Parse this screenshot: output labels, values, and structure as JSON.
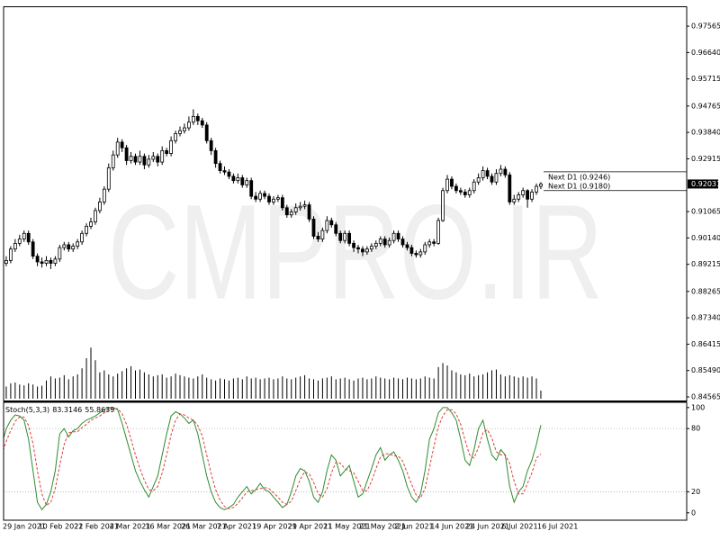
{
  "chart_data": {
    "type": "candlestick",
    "watermark": "CMPRO.IR",
    "up_color": "#ffffff",
    "down_color": "#000000",
    "categories": [
      "29 Jan 2021",
      null,
      null,
      null,
      null,
      null,
      null,
      null,
      "10 Feb 2021",
      null,
      null,
      null,
      null,
      null,
      null,
      null,
      "22 Feb 2021",
      null,
      null,
      null,
      null,
      null,
      null,
      null,
      "4 Mar 2021",
      null,
      null,
      null,
      null,
      null,
      null,
      null,
      "16 Mar 2021",
      null,
      null,
      null,
      null,
      null,
      null,
      null,
      "26 Mar 2021",
      null,
      null,
      null,
      null,
      null,
      null,
      null,
      "7 Apr 2021",
      null,
      null,
      null,
      null,
      null,
      null,
      null,
      "19 Apr 2021",
      null,
      null,
      null,
      null,
      null,
      null,
      null,
      "29 Apr 2021",
      null,
      null,
      null,
      null,
      null,
      null,
      null,
      "11 May 2021",
      null,
      null,
      null,
      null,
      null,
      null,
      null,
      "21 May 2021",
      null,
      null,
      null,
      null,
      null,
      null,
      null,
      "2 Jun 2021",
      null,
      null,
      null,
      null,
      null,
      null,
      null,
      "14 Jun 2021",
      null,
      null,
      null,
      null,
      null,
      null,
      null,
      "24 Jun 2021",
      null,
      null,
      null,
      null,
      null,
      null,
      null,
      "6 Jul 2021",
      null,
      null,
      null,
      null,
      null,
      null,
      null,
      "16 Jul 2021",
      null
    ],
    "open": [
      0.8915,
      0.8925,
      0.8935,
      0.8975,
      0.8995,
      0.901,
      0.903,
      0.9,
      0.895,
      0.893,
      0.8925,
      0.8935,
      0.8925,
      0.894,
      0.898,
      0.899,
      0.8975,
      0.8985,
      0.9,
      0.903,
      0.9055,
      0.907,
      0.911,
      0.914,
      0.9185,
      0.926,
      0.9305,
      0.935,
      0.933,
      0.9285,
      0.93,
      0.928,
      0.93,
      0.927,
      0.929,
      0.93,
      0.928,
      0.932,
      0.931,
      0.9355,
      0.938,
      0.939,
      0.94,
      0.942,
      0.944,
      0.9425,
      0.941,
      0.9355,
      0.932,
      0.9275,
      0.925,
      0.9245,
      0.923,
      0.9215,
      0.9225,
      0.92,
      0.9215,
      0.916,
      0.915,
      0.917,
      0.916,
      0.914,
      0.915,
      0.9155,
      0.912,
      0.9095,
      0.9105,
      0.912,
      0.9125,
      0.913,
      0.908,
      0.902,
      0.901,
      0.904,
      0.9075,
      0.906,
      0.903,
      0.9005,
      0.903,
      0.8995,
      0.898,
      0.8975,
      0.8965,
      0.8975,
      0.8985,
      0.8995,
      0.901,
      0.899,
      0.9005,
      0.903,
      0.901,
      0.899,
      0.898,
      0.896,
      0.8955,
      0.8965,
      0.899,
      0.9,
      0.8995,
      0.9075,
      0.918,
      0.922,
      0.9195,
      0.918,
      0.9175,
      0.9165,
      0.918,
      0.921,
      0.9225,
      0.925,
      0.923,
      0.921,
      0.924,
      0.9255,
      0.9235,
      0.914,
      0.915,
      0.9165,
      0.918,
      0.915,
      0.9175,
      0.9195
    ],
    "high": [
      0.8935,
      0.895,
      0.8985,
      0.901,
      0.9025,
      0.904,
      0.904,
      0.901,
      0.896,
      0.8945,
      0.895,
      0.8945,
      0.895,
      0.899,
      0.9,
      0.9,
      0.8995,
      0.901,
      0.904,
      0.9065,
      0.9085,
      0.912,
      0.9155,
      0.9195,
      0.9275,
      0.932,
      0.9365,
      0.936,
      0.934,
      0.9315,
      0.931,
      0.932,
      0.931,
      0.9305,
      0.9315,
      0.931,
      0.9335,
      0.933,
      0.937,
      0.939,
      0.9405,
      0.9415,
      0.944,
      0.9465,
      0.945,
      0.9435,
      0.942,
      0.9365,
      0.933,
      0.9285,
      0.9265,
      0.9255,
      0.924,
      0.924,
      0.9235,
      0.9225,
      0.9225,
      0.9175,
      0.918,
      0.918,
      0.917,
      0.916,
      0.9165,
      0.9165,
      0.913,
      0.9115,
      0.9135,
      0.914,
      0.9145,
      0.914,
      0.909,
      0.9035,
      0.905,
      0.909,
      0.9085,
      0.907,
      0.904,
      0.904,
      0.904,
      0.9005,
      0.899,
      0.8985,
      0.8985,
      0.8995,
      0.9005,
      0.902,
      0.902,
      0.9015,
      0.904,
      0.904,
      0.902,
      0.9,
      0.899,
      0.897,
      0.8975,
      0.9,
      0.901,
      0.901,
      0.9085,
      0.919,
      0.9235,
      0.923,
      0.9205,
      0.919,
      0.9185,
      0.919,
      0.922,
      0.924,
      0.9265,
      0.926,
      0.924,
      0.9255,
      0.927,
      0.9265,
      0.9245,
      0.9165,
      0.9175,
      0.919,
      0.9185,
      0.9185,
      0.9205,
      0.921
    ],
    "low": [
      0.8905,
      0.8915,
      0.8925,
      0.8965,
      0.8985,
      0.9,
      0.899,
      0.894,
      0.8915,
      0.891,
      0.8915,
      0.8905,
      0.8915,
      0.893,
      0.897,
      0.8965,
      0.8965,
      0.8975,
      0.899,
      0.902,
      0.9045,
      0.906,
      0.91,
      0.913,
      0.9175,
      0.925,
      0.9295,
      0.9315,
      0.927,
      0.9275,
      0.927,
      0.927,
      0.9255,
      0.926,
      0.928,
      0.9265,
      0.927,
      0.93,
      0.93,
      0.9345,
      0.937,
      0.938,
      0.939,
      0.941,
      0.941,
      0.94,
      0.9345,
      0.9305,
      0.926,
      0.924,
      0.9235,
      0.922,
      0.9205,
      0.9205,
      0.919,
      0.919,
      0.915,
      0.914,
      0.914,
      0.915,
      0.913,
      0.913,
      0.914,
      0.911,
      0.9085,
      0.9085,
      0.9095,
      0.911,
      0.9115,
      0.907,
      0.901,
      0.9,
      0.9,
      0.903,
      0.905,
      0.902,
      0.8995,
      0.8995,
      0.8985,
      0.8965,
      0.896,
      0.895,
      0.8955,
      0.8965,
      0.8975,
      0.8985,
      0.898,
      0.898,
      0.8995,
      0.9,
      0.898,
      0.897,
      0.895,
      0.8945,
      0.8945,
      0.8955,
      0.898,
      0.8985,
      0.899,
      0.907,
      0.917,
      0.9185,
      0.917,
      0.9165,
      0.9155,
      0.9155,
      0.917,
      0.92,
      0.9215,
      0.922,
      0.92,
      0.92,
      0.923,
      0.9225,
      0.913,
      0.913,
      0.914,
      0.9155,
      0.912,
      0.914,
      0.9165,
      0.9185
    ],
    "close": [
      0.8925,
      0.8935,
      0.8975,
      0.8995,
      0.901,
      0.903,
      0.9,
      0.895,
      0.893,
      0.8925,
      0.8935,
      0.8925,
      0.894,
      0.898,
      0.899,
      0.8975,
      0.8985,
      0.9,
      0.903,
      0.9055,
      0.907,
      0.911,
      0.914,
      0.9185,
      0.926,
      0.9305,
      0.935,
      0.933,
      0.9285,
      0.93,
      0.928,
      0.93,
      0.927,
      0.929,
      0.93,
      0.928,
      0.932,
      0.931,
      0.9355,
      0.938,
      0.939,
      0.94,
      0.942,
      0.944,
      0.9425,
      0.941,
      0.9355,
      0.932,
      0.9275,
      0.925,
      0.9245,
      0.923,
      0.9215,
      0.9225,
      0.92,
      0.9215,
      0.916,
      0.915,
      0.917,
      0.916,
      0.914,
      0.915,
      0.9155,
      0.912,
      0.9095,
      0.9105,
      0.912,
      0.9125,
      0.913,
      0.908,
      0.902,
      0.901,
      0.904,
      0.9075,
      0.906,
      0.903,
      0.9005,
      0.903,
      0.8995,
      0.898,
      0.8975,
      0.8965,
      0.8975,
      0.8985,
      0.8995,
      0.901,
      0.899,
      0.9005,
      0.903,
      0.901,
      0.899,
      0.898,
      0.896,
      0.8955,
      0.8965,
      0.899,
      0.9,
      0.8995,
      0.9075,
      0.918,
      0.922,
      0.9195,
      0.918,
      0.9175,
      0.9165,
      0.918,
      0.921,
      0.9225,
      0.925,
      0.923,
      0.921,
      0.924,
      0.9255,
      0.9235,
      0.914,
      0.915,
      0.9165,
      0.918,
      0.915,
      0.9175,
      0.9195,
      0.92031
    ],
    "ylim": [
      0.8444,
      0.9823
    ],
    "yticks": [
      0.97565,
      {
        "value": 0.9664,
        "label": "0.96640"
      },
      0.95715,
      0.94765,
      {
        "value": 0.9384,
        "label": "0.93840"
      },
      0.92915,
      0.91065,
      {
        "value": 0.9014,
        "label": "0.90140"
      },
      0.89215,
      0.88265,
      {
        "value": 0.8734,
        "label": "0.87340"
      },
      0.86415,
      {
        "value": 0.8549,
        "label": "0.85490"
      },
      0.84565
    ],
    "last_price": 0.92031,
    "levels": [
      {
        "label": "Next D1 (0.9246)",
        "value": 0.9246
      },
      {
        "label": "Next D1 (0.9180)",
        "value": 0.918
      }
    ],
    "volume": {
      "color": "#000000",
      "ylim": [
        0,
        240
      ],
      "values": [
        35,
        30,
        38,
        40,
        35,
        33,
        38,
        35,
        30,
        32,
        45,
        55,
        50,
        52,
        58,
        48,
        55,
        60,
        75,
        100,
        126,
        95,
        65,
        70,
        60,
        55,
        62,
        68,
        75,
        80,
        70,
        72,
        65,
        60,
        55,
        58,
        60,
        52,
        55,
        62,
        58,
        55,
        52,
        50,
        55,
        60,
        52,
        48,
        45,
        50,
        48,
        45,
        50,
        52,
        48,
        55,
        50,
        52,
        48,
        50,
        52,
        48,
        50,
        55,
        50,
        48,
        52,
        55,
        58,
        50,
        48,
        45,
        50,
        52,
        55,
        48,
        50,
        52,
        48,
        45,
        50,
        52,
        48,
        50,
        55,
        52,
        50,
        48,
        52,
        50,
        48,
        52,
        50,
        48,
        50,
        55,
        52,
        50,
        78,
        88,
        82,
        70,
        65,
        60,
        58,
        62,
        55,
        58,
        60,
        65,
        70,
        72,
        60,
        55,
        58,
        55,
        52,
        55,
        52,
        55,
        50,
        20
      ]
    },
    "indicator": {
      "type": "line",
      "name": "Stoch(5,3,3)",
      "ylim": [
        -7,
        105
      ],
      "yticks": [
        100,
        80,
        20,
        0
      ],
      "levels": [
        80,
        20
      ],
      "series": [
        {
          "color": "#2e8b2e",
          "dashed": false,
          "values": [
            65,
            80,
            88,
            93,
            92,
            88,
            70,
            40,
            10,
            3,
            8,
            20,
            40,
            75,
            80,
            72,
            78,
            80,
            85,
            88,
            90,
            92,
            95,
            98,
            100,
            100,
            98,
            85,
            70,
            55,
            40,
            30,
            22,
            15,
            25,
            35,
            55,
            75,
            92,
            96,
            94,
            90,
            85,
            88,
            75,
            55,
            35,
            20,
            10,
            5,
            3,
            5,
            8,
            15,
            20,
            25,
            18,
            22,
            28,
            22,
            20,
            15,
            10,
            5,
            8,
            20,
            35,
            42,
            40,
            30,
            15,
            10,
            20,
            40,
            55,
            50,
            35,
            40,
            45,
            30,
            15,
            18,
            30,
            42,
            55,
            62,
            50,
            55,
            58,
            50,
            40,
            25,
            15,
            10,
            18,
            40,
            70,
            80,
            95,
            100,
            100,
            95,
            88,
            70,
            50,
            45,
            60,
            80,
            88,
            70,
            55,
            50,
            60,
            55,
            25,
            10,
            20,
            25,
            40,
            50,
            65,
            83.3146
          ]
        },
        {
          "color": "#e03c3c",
          "dashed": true,
          "values": [
            55,
            68,
            78,
            87,
            91,
            91,
            83,
            66,
            40,
            18,
            7,
            10,
            23,
            45,
            65,
            76,
            77,
            77,
            81,
            84,
            88,
            90,
            92,
            95,
            98,
            99,
            99,
            94,
            84,
            70,
            55,
            42,
            31,
            22,
            21,
            25,
            38,
            55,
            74,
            88,
            94,
            93,
            90,
            88,
            83,
            73,
            55,
            37,
            22,
            12,
            6,
            4,
            5,
            9,
            14,
            20,
            21,
            22,
            23,
            24,
            23,
            19,
            15,
            10,
            8,
            11,
            21,
            32,
            39,
            37,
            29,
            18,
            15,
            23,
            38,
            48,
            47,
            42,
            40,
            38,
            30,
            21,
            21,
            30,
            42,
            53,
            56,
            56,
            54,
            54,
            49,
            38,
            27,
            17,
            14,
            23,
            43,
            63,
            82,
            92,
            98,
            98,
            94,
            84,
            69,
            55,
            52,
            62,
            76,
            79,
            71,
            58,
            55,
            55,
            47,
            30,
            18,
            18,
            28,
            38,
            52,
            55.8639
          ]
        }
      ]
    }
  }
}
